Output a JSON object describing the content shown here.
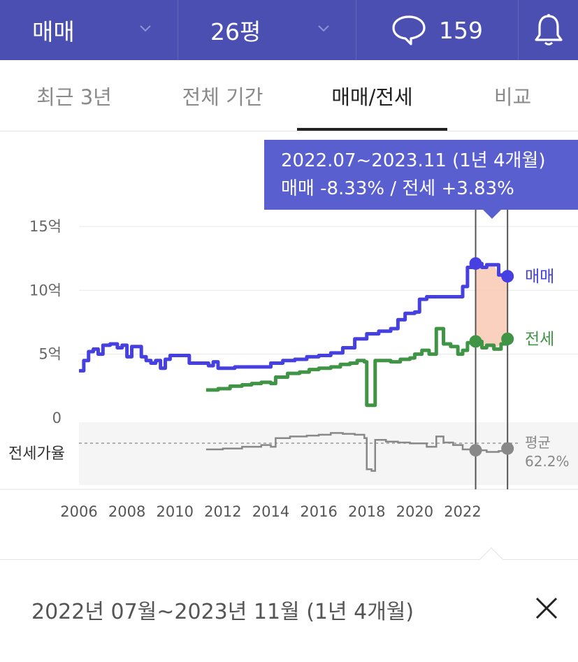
{
  "header": {
    "deal_type": "매매",
    "size": "26평",
    "comment_count": "159"
  },
  "tabs": [
    {
      "label": "최근 3년",
      "active": false
    },
    {
      "label": "전체 기간",
      "active": false
    },
    {
      "label": "매매/전세",
      "active": true
    },
    {
      "label": "비교",
      "active": false
    }
  ],
  "tooltip": {
    "period": "2022.07~2023.11 (1년 4개월)",
    "change": "매매 -8.33%  /  전세 +3.83%"
  },
  "selection": {
    "text": "2022년 07월~2023년 11월 (1년 4개월)",
    "start": 2022.54,
    "end": 2023.87
  },
  "colors": {
    "header_bg": "#4b4fb2",
    "tooltip_bg": "#5a5fd0",
    "sale": "#4640e0",
    "jeonse": "#3f9446",
    "ratio": "#888888",
    "highlight": "#f9c9b4"
  },
  "chart_data": {
    "type": "line",
    "x_ticks": [
      2006,
      2008,
      2010,
      2012,
      2014,
      2016,
      2018,
      2020,
      2022
    ],
    "y_ticks": [
      {
        "value": 0,
        "label": "0"
      },
      {
        "value": 5,
        "label": "5억"
      },
      {
        "value": 10,
        "label": "10억"
      },
      {
        "value": 15,
        "label": "15억"
      }
    ],
    "xlim": [
      2006,
      2024.2
    ],
    "ylim": [
      0,
      15
    ],
    "series": [
      {
        "name": "매매",
        "unit": "억",
        "points": [
          [
            2006.0,
            3.7
          ],
          [
            2006.2,
            4.5
          ],
          [
            2006.4,
            5.2
          ],
          [
            2006.6,
            5.4
          ],
          [
            2006.8,
            5.0
          ],
          [
            2007.0,
            5.7
          ],
          [
            2007.3,
            5.8
          ],
          [
            2007.6,
            5.5
          ],
          [
            2007.8,
            5.7
          ],
          [
            2008.0,
            4.8
          ],
          [
            2008.2,
            5.6
          ],
          [
            2008.4,
            5.6
          ],
          [
            2008.6,
            4.8
          ],
          [
            2008.8,
            4.5
          ],
          [
            2009.0,
            4.3
          ],
          [
            2009.2,
            4.5
          ],
          [
            2009.4,
            3.9
          ],
          [
            2009.6,
            4.6
          ],
          [
            2009.8,
            4.9
          ],
          [
            2010.0,
            4.9
          ],
          [
            2010.4,
            4.9
          ],
          [
            2010.6,
            4.3
          ],
          [
            2011.0,
            4.3
          ],
          [
            2011.4,
            4.1
          ],
          [
            2011.6,
            4.4
          ],
          [
            2011.8,
            3.9
          ],
          [
            2012.5,
            4.0
          ],
          [
            2013.0,
            4.0
          ],
          [
            2013.5,
            4.0
          ],
          [
            2013.9,
            4.0
          ],
          [
            2014.0,
            4.3
          ],
          [
            2014.5,
            4.5
          ],
          [
            2015.0,
            4.6
          ],
          [
            2015.5,
            4.8
          ],
          [
            2016.0,
            4.9
          ],
          [
            2016.5,
            5.1
          ],
          [
            2017.0,
            5.5
          ],
          [
            2017.5,
            6.2
          ],
          [
            2018.0,
            6.6
          ],
          [
            2018.5,
            6.8
          ],
          [
            2019.0,
            7.0
          ],
          [
            2019.3,
            7.7
          ],
          [
            2019.6,
            8.2
          ],
          [
            2020.0,
            8.3
          ],
          [
            2020.2,
            9.3
          ],
          [
            2020.5,
            9.5
          ],
          [
            2021.0,
            9.5
          ],
          [
            2021.5,
            9.5
          ],
          [
            2021.9,
            9.5
          ],
          [
            2022.0,
            10.3
          ],
          [
            2022.2,
            11.8
          ],
          [
            2022.54,
            12.1
          ],
          [
            2022.8,
            11.8
          ],
          [
            2023.0,
            12.0
          ],
          [
            2023.3,
            12.0
          ],
          [
            2023.5,
            11.2
          ],
          [
            2023.87,
            11.1
          ]
        ]
      },
      {
        "name": "전세",
        "unit": "억",
        "points": [
          [
            2011.3,
            2.2
          ],
          [
            2011.8,
            2.3
          ],
          [
            2012.3,
            2.5
          ],
          [
            2012.8,
            2.6
          ],
          [
            2013.2,
            2.7
          ],
          [
            2013.6,
            2.8
          ],
          [
            2014.0,
            2.7
          ],
          [
            2014.2,
            3.2
          ],
          [
            2014.7,
            3.5
          ],
          [
            2015.2,
            3.6
          ],
          [
            2015.6,
            3.8
          ],
          [
            2016.0,
            3.9
          ],
          [
            2016.5,
            4.0
          ],
          [
            2016.9,
            4.2
          ],
          [
            2017.3,
            4.3
          ],
          [
            2017.6,
            4.5
          ],
          [
            2017.9,
            4.4
          ],
          [
            2018.0,
            1.0
          ],
          [
            2018.2,
            1.0
          ],
          [
            2018.35,
            4.5
          ],
          [
            2018.6,
            4.5
          ],
          [
            2019.0,
            4.4
          ],
          [
            2019.4,
            4.6
          ],
          [
            2019.8,
            4.7
          ],
          [
            2020.0,
            5.0
          ],
          [
            2020.3,
            5.3
          ],
          [
            2020.6,
            5.0
          ],
          [
            2020.9,
            7.0
          ],
          [
            2021.2,
            5.8
          ],
          [
            2021.5,
            5.6
          ],
          [
            2021.8,
            5.0
          ],
          [
            2022.0,
            5.3
          ],
          [
            2022.2,
            5.9
          ],
          [
            2022.54,
            6.0
          ],
          [
            2022.8,
            5.5
          ],
          [
            2023.0,
            5.7
          ],
          [
            2023.3,
            5.4
          ],
          [
            2023.6,
            5.8
          ],
          [
            2023.87,
            6.2
          ]
        ]
      },
      {
        "name": "전세가율",
        "unit": "%",
        "points": [
          [
            2011.3,
            55
          ],
          [
            2012.0,
            56
          ],
          [
            2012.8,
            58
          ],
          [
            2013.6,
            60
          ],
          [
            2014.0,
            58
          ],
          [
            2014.2,
            68
          ],
          [
            2014.8,
            70
          ],
          [
            2015.5,
            71
          ],
          [
            2016.0,
            72
          ],
          [
            2016.5,
            74
          ],
          [
            2017.0,
            73
          ],
          [
            2017.5,
            72
          ],
          [
            2017.9,
            68
          ],
          [
            2018.0,
            32
          ],
          [
            2018.2,
            30
          ],
          [
            2018.35,
            66
          ],
          [
            2018.8,
            64
          ],
          [
            2019.3,
            63
          ],
          [
            2019.8,
            62
          ],
          [
            2020.0,
            62
          ],
          [
            2020.5,
            58
          ],
          [
            2020.9,
            70
          ],
          [
            2021.2,
            63
          ],
          [
            2021.6,
            60
          ],
          [
            2022.0,
            55
          ],
          [
            2022.54,
            54
          ],
          [
            2023.0,
            52
          ],
          [
            2023.5,
            53
          ],
          [
            2023.87,
            56
          ]
        ]
      }
    ],
    "ratio_label": "전세가율",
    "ratio_avg_label": "평균",
    "ratio_avg": "62.2%",
    "ratio_avg_value": 62.2,
    "sale_end_label": "매매",
    "jeonse_end_label": "전세"
  }
}
